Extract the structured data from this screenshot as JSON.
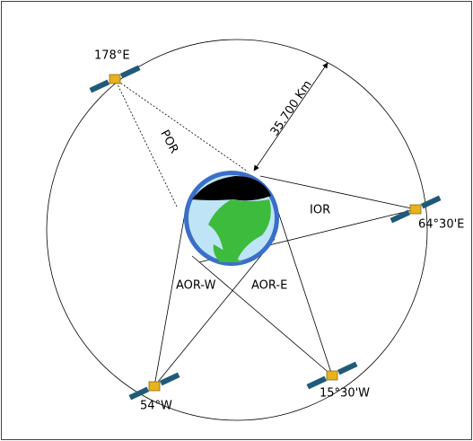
{
  "satellites": [
    "178°E",
    "64°30'E",
    "54°W",
    "15°30'W"
  ],
  "regions": [
    "POR",
    "IOR",
    "AOR-W",
    "AOR-E"
  ],
  "distance": "35.700 Km"
}
